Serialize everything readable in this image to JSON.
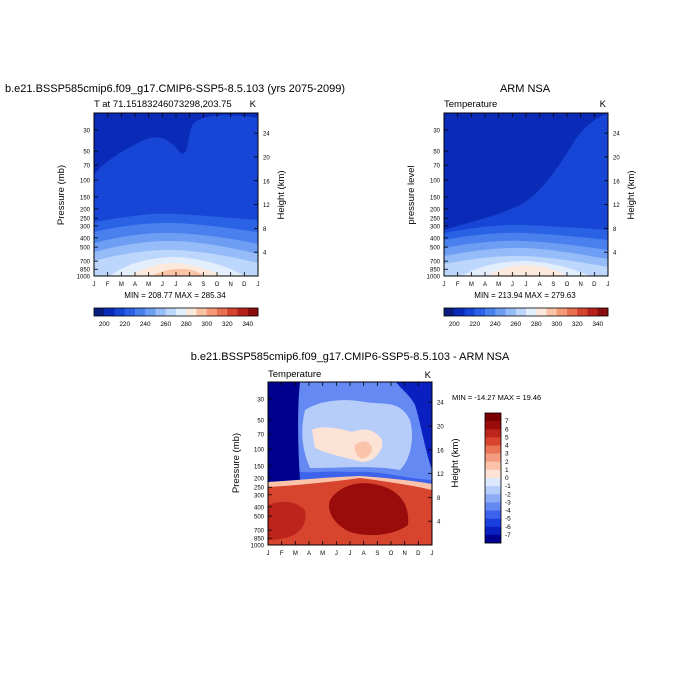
{
  "chart_data": [
    {
      "type": "heatmap",
      "title": "b.e21.BSSP585cmip6.f09_g17.CMIP6-SSP5-8.5.103 (yrs 2075-2099)",
      "left_label": "T at 71.15183246073298,203.75",
      "right_label": "K",
      "ylabel": "Pressure (mb)",
      "ylabel_right": "Height (km)",
      "x_ticks": [
        "J",
        "F",
        "M",
        "A",
        "M",
        "J",
        "J",
        "A",
        "S",
        "O",
        "N",
        "D",
        "J"
      ],
      "pressure_ticks": [
        30,
        50,
        70,
        100,
        150,
        200,
        250,
        300,
        400,
        500,
        700,
        850,
        1000
      ],
      "height_ticks": [
        4,
        8,
        12,
        16,
        20,
        24
      ],
      "ylim_mb": [
        1000,
        20
      ],
      "stats": "MIN = 208.77 MAX = 285.34",
      "min": 208.77,
      "max": 285.34,
      "colorbar": {
        "orientation": "horizontal",
        "labels": [
          "200",
          "220",
          "240",
          "260",
          "280",
          "300",
          "320",
          "340"
        ]
      }
    },
    {
      "type": "heatmap",
      "title": "ARM NSA",
      "left_label": "Temperature",
      "right_label": "K",
      "ylabel": "pressure level",
      "ylabel_right": "Height (km)",
      "x_ticks": [
        "J",
        "F",
        "M",
        "A",
        "M",
        "J",
        "J",
        "A",
        "S",
        "O",
        "N",
        "D",
        "J"
      ],
      "pressure_ticks": [
        30,
        50,
        70,
        100,
        150,
        200,
        250,
        300,
        400,
        500,
        700,
        850,
        1000
      ],
      "height_ticks": [
        4,
        8,
        12,
        16,
        20,
        24
      ],
      "ylim_mb": [
        1000,
        20
      ],
      "stats": "MIN = 213.94 MAX = 279.63",
      "min": 213.94,
      "max": 279.63,
      "colorbar": {
        "orientation": "horizontal",
        "labels": [
          "200",
          "220",
          "240",
          "260",
          "280",
          "300",
          "320",
          "340"
        ]
      }
    },
    {
      "type": "heatmap",
      "title": "b.e21.BSSP585cmip6.f09_g17.CMIP6-SSP5-8.5.103 - ARM NSA",
      "left_label": "Temperature",
      "right_label": "K",
      "ylabel": "Pressure (mb)",
      "ylabel_right": "Height (km)",
      "x_ticks": [
        "J",
        "F",
        "M",
        "A",
        "M",
        "J",
        "J",
        "A",
        "S",
        "O",
        "N",
        "D",
        "J"
      ],
      "pressure_ticks": [
        30,
        50,
        70,
        100,
        150,
        200,
        250,
        300,
        400,
        500,
        700,
        850,
        1000
      ],
      "height_ticks": [
        4,
        8,
        12,
        16,
        20,
        24
      ],
      "ylim_mb": [
        1000,
        20
      ],
      "stats": "MIN = -14.27 MAX =  19.46",
      "min": -14.27,
      "max": 19.46,
      "colorbar": {
        "orientation": "vertical",
        "labels": [
          "7",
          "6",
          "5",
          "4",
          "3",
          "2",
          "1",
          "0",
          "-1",
          "-2",
          "-3",
          "-4",
          "-5",
          "-6",
          "-7"
        ]
      }
    }
  ],
  "palettes": {
    "temperature": [
      "#081d7e",
      "#0a2bb8",
      "#1745d6",
      "#2a62e6",
      "#4a80ee",
      "#6e9df4",
      "#95bcf8",
      "#bdd6fb",
      "#e3eefd",
      "#fde8dc",
      "#fbc3a6",
      "#f49a78",
      "#e86f50",
      "#d3442f",
      "#b5211b",
      "#8a0d0d"
    ],
    "difference": [
      "#00008f",
      "#0a1fbf",
      "#1a3fe0",
      "#3d63ec",
      "#6589f2",
      "#8eacf6",
      "#b6cdfa",
      "#dbe7fd",
      "#fde3d6",
      "#fbc4aa",
      "#f49c7f",
      "#ea7456",
      "#d8452f",
      "#bd241b",
      "#9a0c0c",
      "#7a0000"
    ]
  }
}
